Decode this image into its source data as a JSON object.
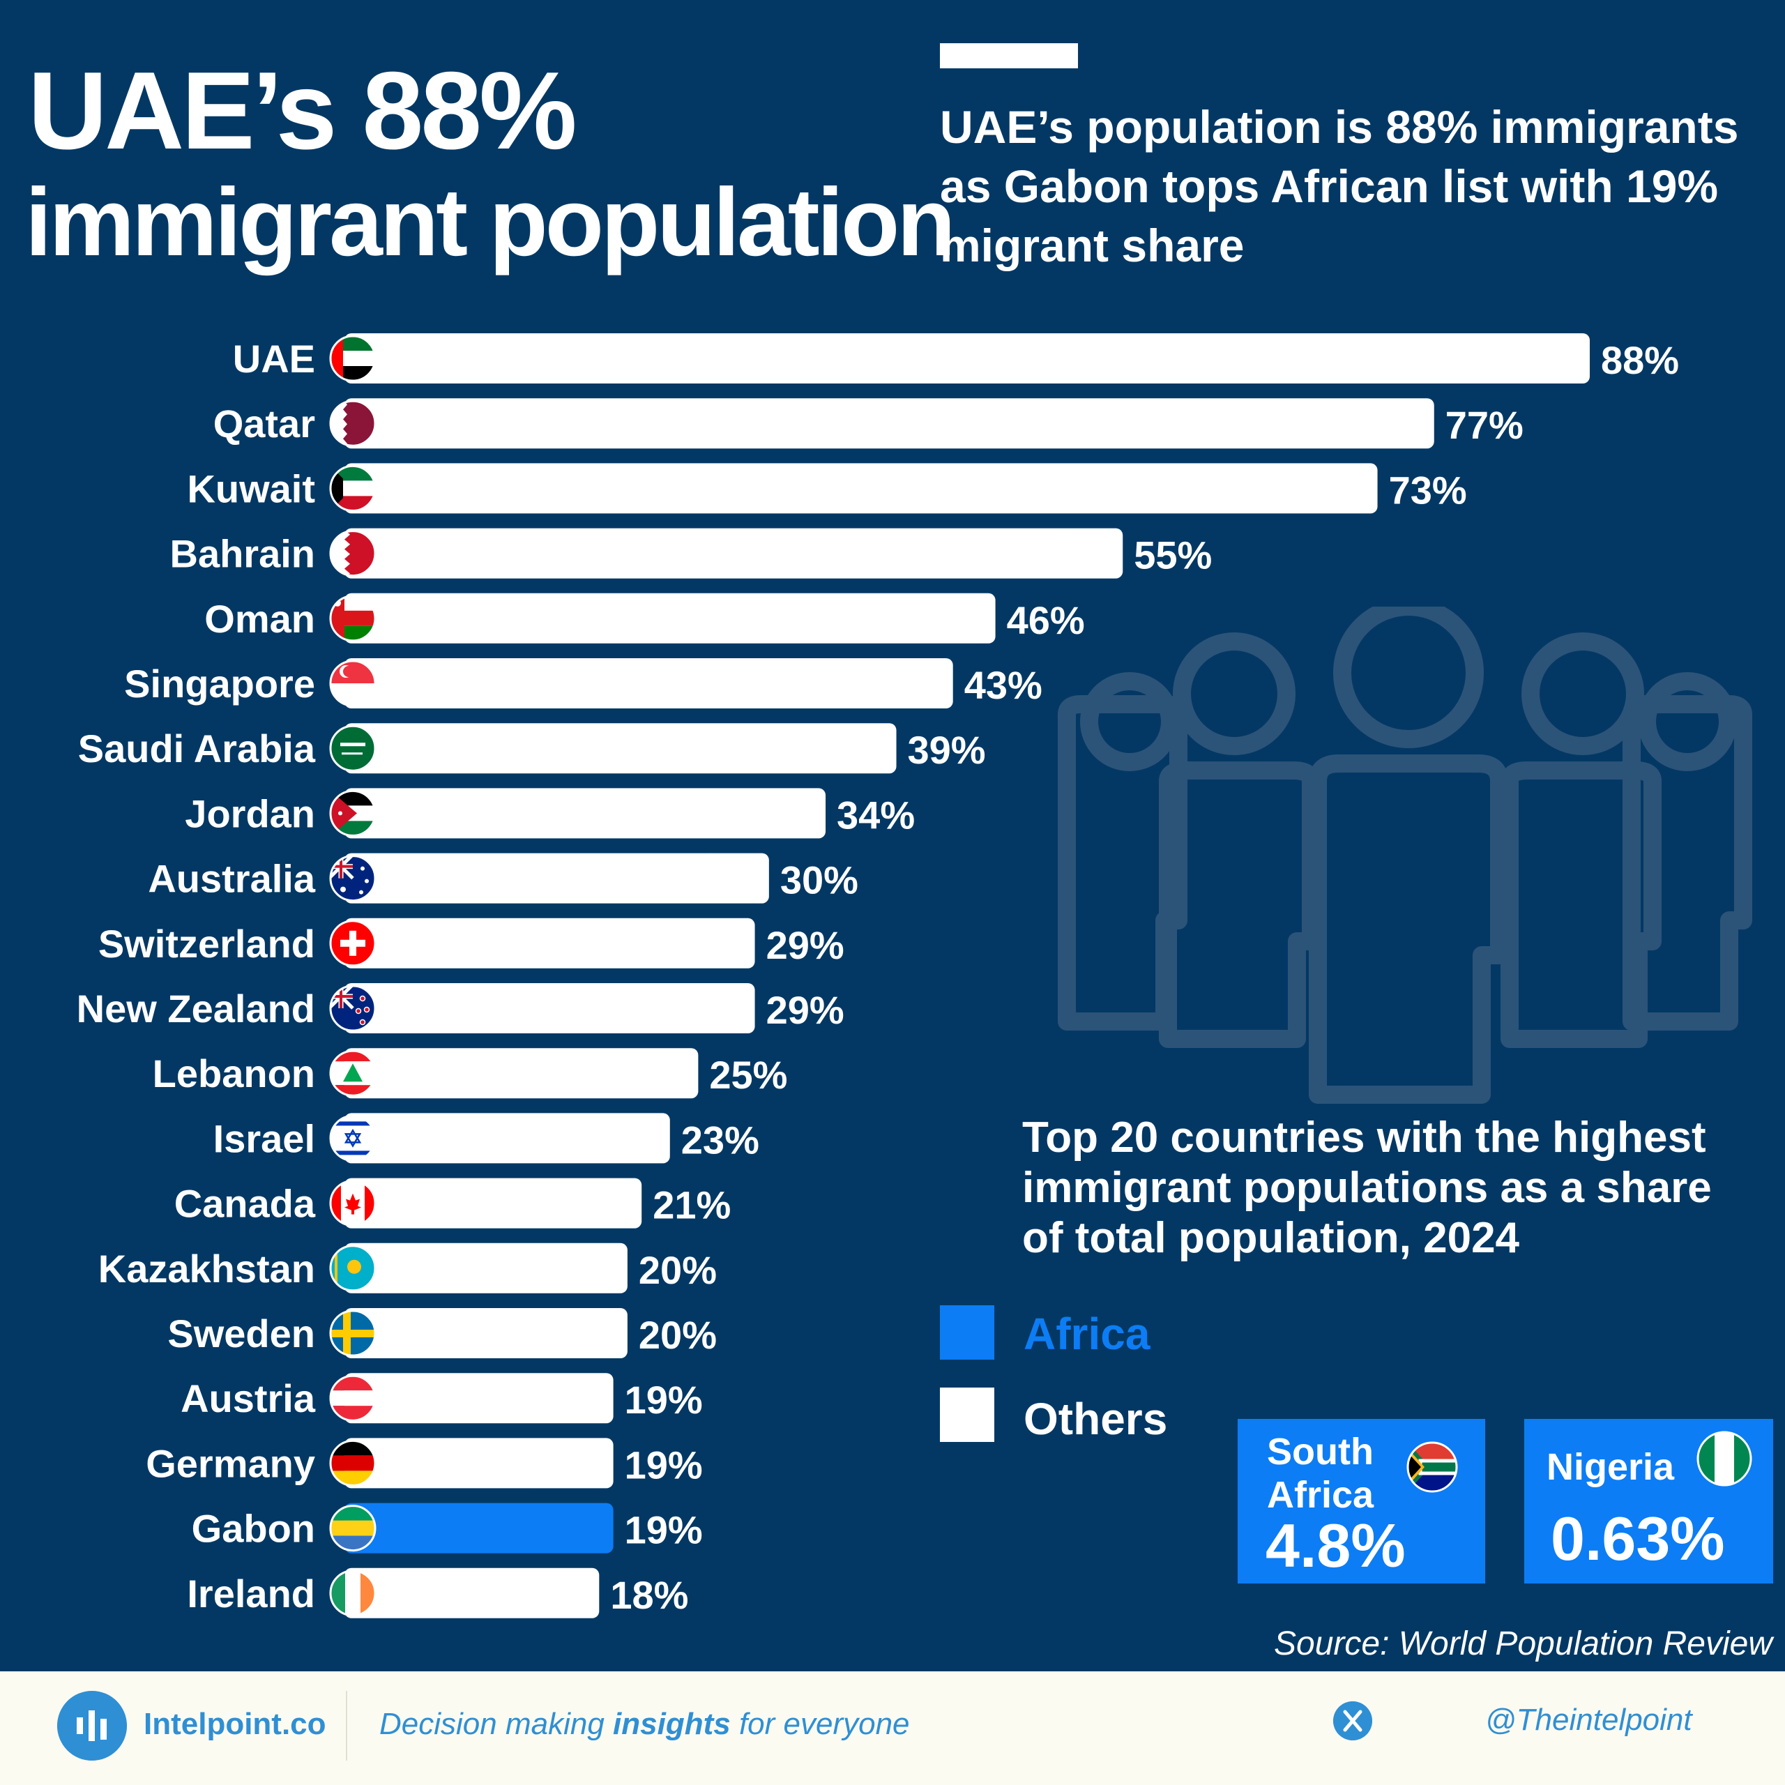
{
  "header": {
    "title_line1": "UAE’s 88%",
    "title_line2": "immigrant population",
    "subtitle": "UAE’s population is 88% immigrants as Gabon tops African list with 19% migrant share"
  },
  "chart_data": {
    "type": "bar",
    "orientation": "horizontal",
    "title": "Top 20 countries with the highest immigrant populations as a share of total population, 2024",
    "xlabel": "",
    "ylabel": "",
    "categories": [
      "UAE",
      "Qatar",
      "Kuwait",
      "Bahrain",
      "Oman",
      "Singapore",
      "Saudi Arabia",
      "Jordan",
      "Australia",
      "Switzerland",
      "New Zealand",
      "Lebanon",
      "Israel",
      "Canada",
      "Kazakhstan",
      "Sweden",
      "Austria",
      "Germany",
      "Gabon",
      "Ireland"
    ],
    "values": [
      88,
      77,
      73,
      55,
      46,
      43,
      39,
      34,
      30,
      29,
      29,
      25,
      23,
      21,
      20,
      20,
      19,
      19,
      19,
      18
    ],
    "value_labels": [
      "88%",
      "77%",
      "73%",
      "55%",
      "46%",
      "43%",
      "39%",
      "34%",
      "30%",
      "29%",
      "29%",
      "25%",
      "23%",
      "21%",
      "20%",
      "20%",
      "19%",
      "19%",
      "19%",
      "18%"
    ],
    "groups": [
      "Others",
      "Others",
      "Others",
      "Others",
      "Others",
      "Others",
      "Others",
      "Others",
      "Others",
      "Others",
      "Others",
      "Others",
      "Others",
      "Others",
      "Others",
      "Others",
      "Others",
      "Others",
      "Africa",
      "Others"
    ],
    "xlim": [
      0,
      88
    ],
    "grid": false,
    "legend": {
      "position": "right",
      "items": [
        {
          "label": "Africa",
          "color": "#0c7df5"
        },
        {
          "label": "Others",
          "color": "#ffffff"
        }
      ]
    }
  },
  "callouts": [
    {
      "country": "South Africa",
      "value": "4.8%",
      "flag_icon": "south-africa-flag-icon"
    },
    {
      "country": "Nigeria",
      "value": "0.63%",
      "flag_icon": "nigeria-flag-icon"
    }
  ],
  "source": "Source: World Population Review",
  "footer": {
    "brand": "Intelpoint.co",
    "tagline_before": "Decision making ",
    "tagline_bold": "insights",
    "tagline_after": " for everyone",
    "handle": "@Theintelpoint"
  },
  "colors": {
    "background": "#043864",
    "africa": "#0c7df5",
    "others": "#ffffff",
    "footer_bg": "#fcfbf1",
    "brand_blue": "#2f8fd4"
  }
}
